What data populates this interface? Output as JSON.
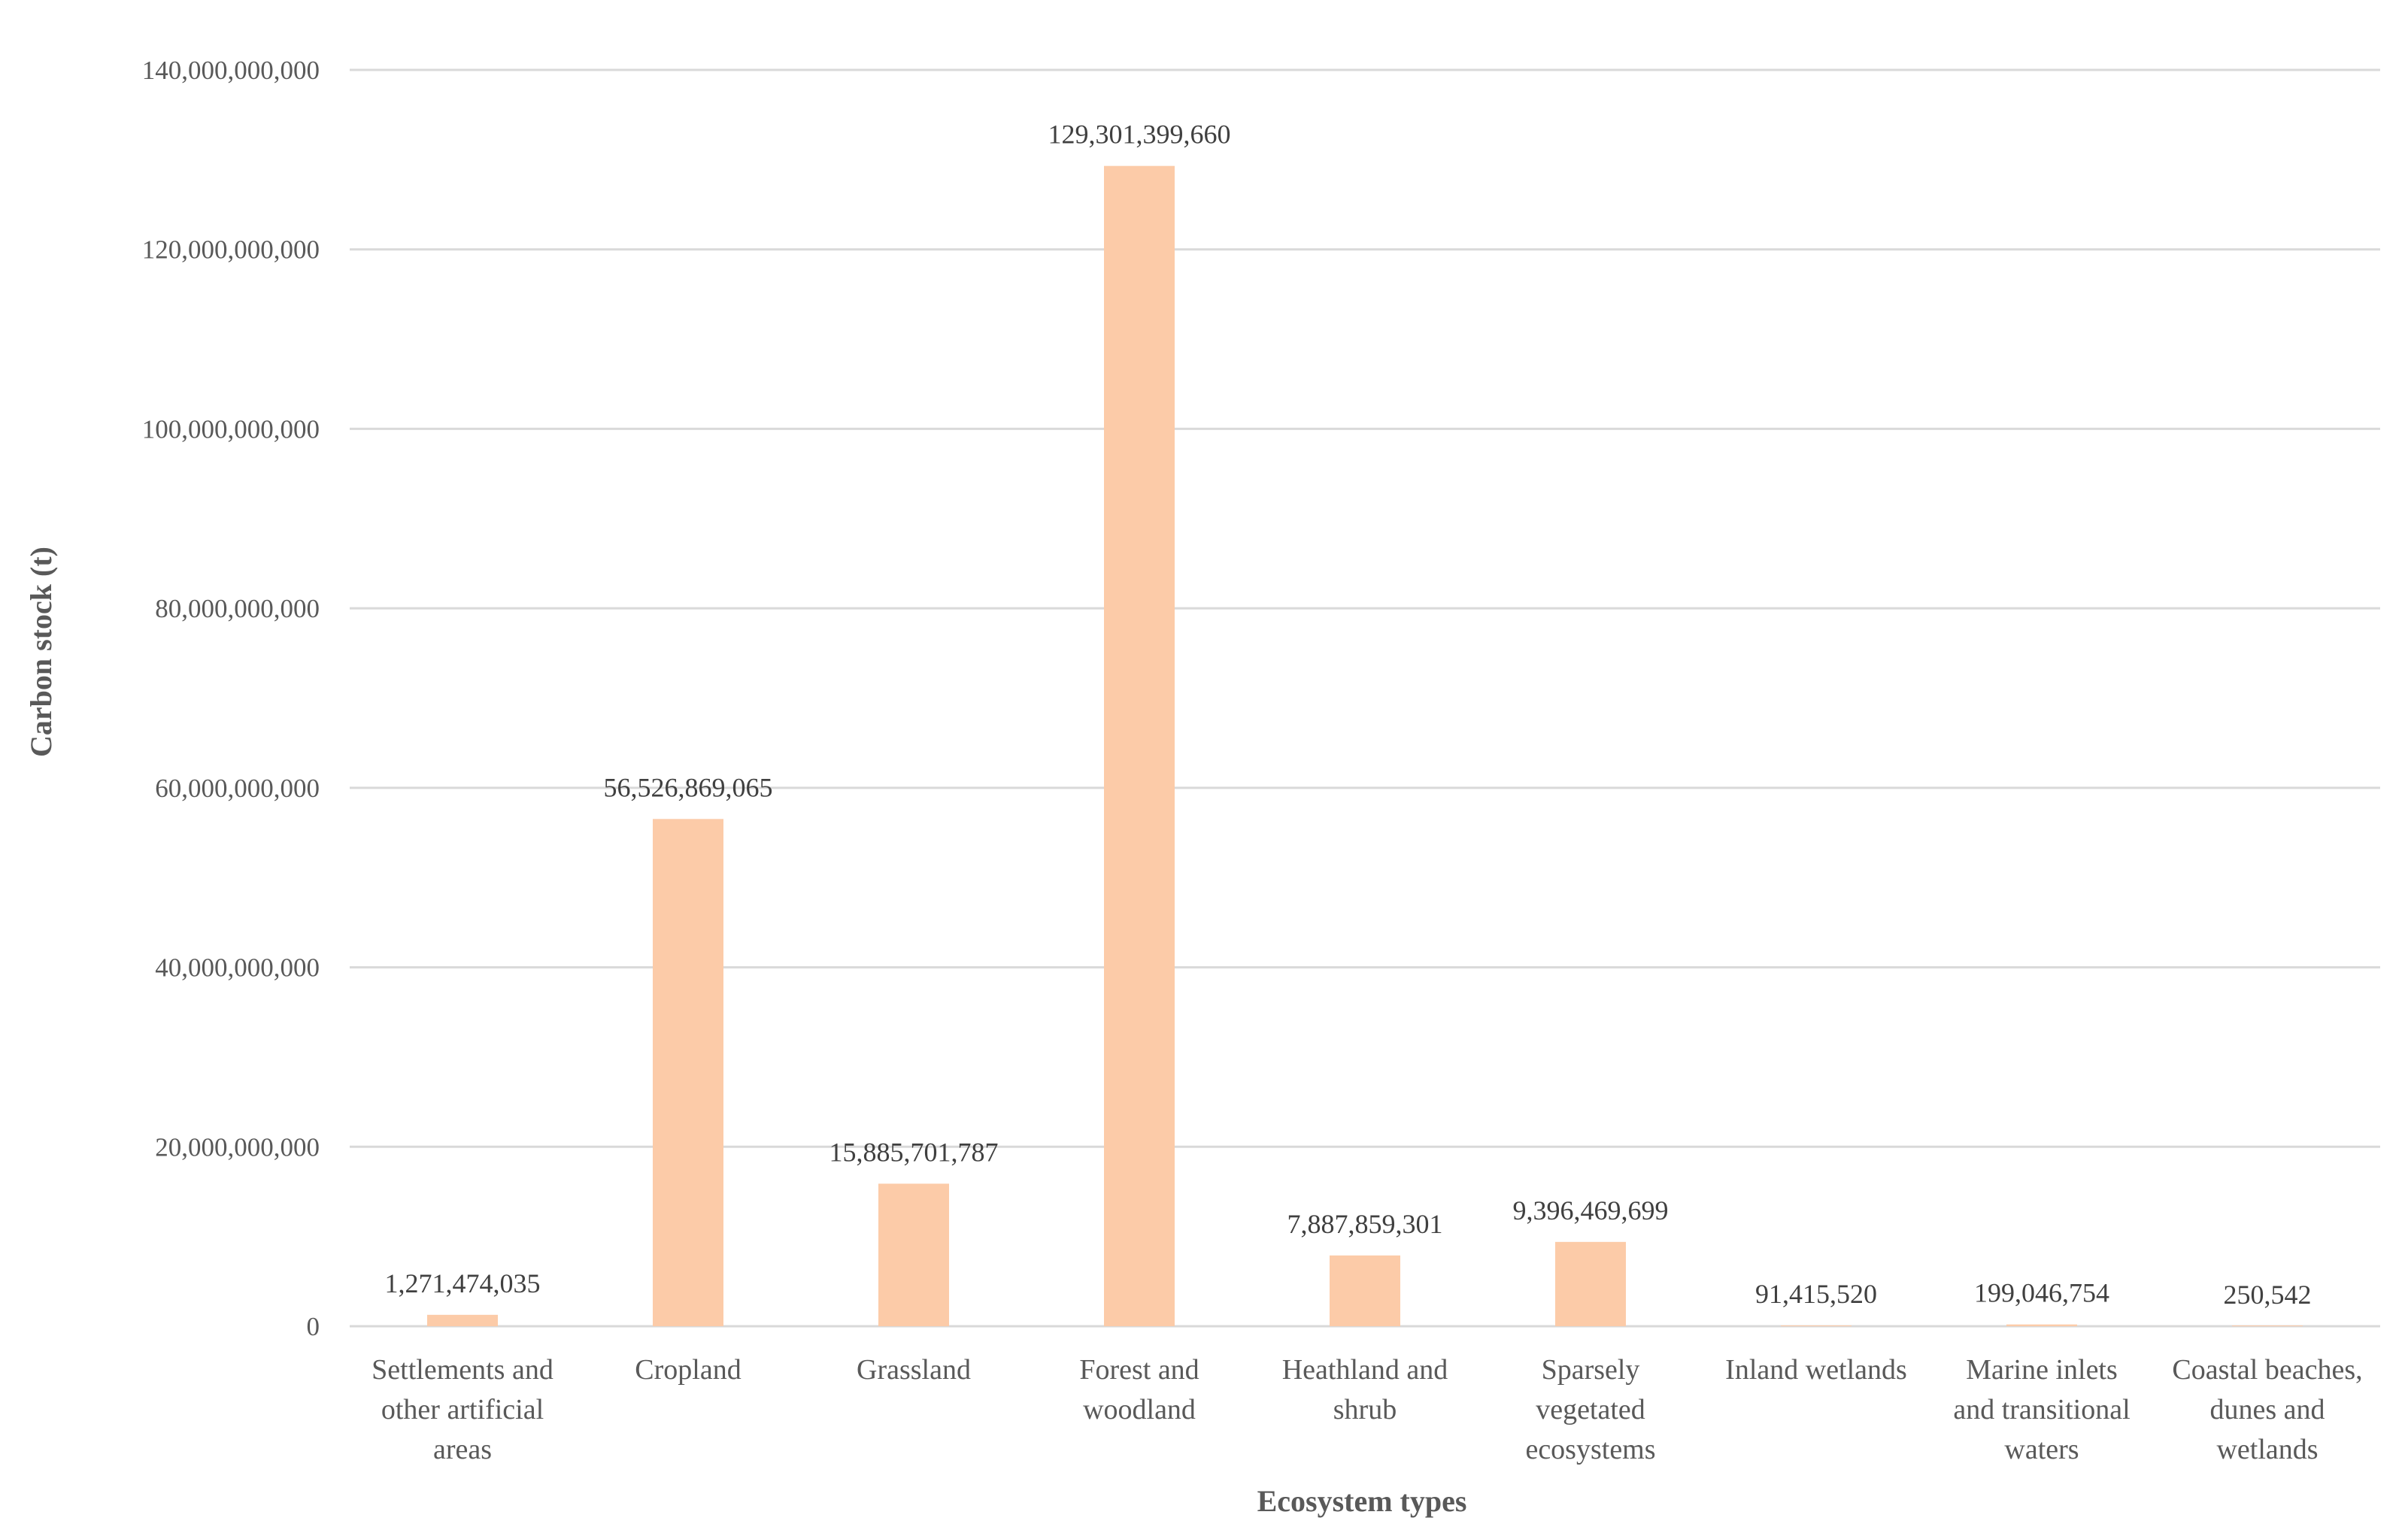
{
  "chart_data": {
    "type": "bar",
    "title": "",
    "xlabel": "Ecosystem types",
    "ylabel": "Carbon stock (t)",
    "ylim": [
      0,
      140000000000
    ],
    "yticks": [
      0,
      20000000000,
      40000000000,
      60000000000,
      80000000000,
      100000000000,
      120000000000,
      140000000000
    ],
    "ytick_labels": [
      "0",
      "20,000,000,000",
      "40,000,000,000",
      "60,000,000,000",
      "80,000,000,000",
      "100,000,000,000",
      "120,000,000,000",
      "140,000,000,000"
    ],
    "grid": true,
    "bar_color": "#fccba8",
    "categories": [
      [
        "Settlements and",
        "other artificial",
        "areas"
      ],
      [
        "Cropland"
      ],
      [
        "Grassland"
      ],
      [
        "Forest and",
        "woodland"
      ],
      [
        "Heathland and",
        "shrub"
      ],
      [
        "Sparsely",
        "vegetated",
        "ecosystems"
      ],
      [
        "Inland wetlands"
      ],
      [
        "Marine inlets",
        "and transitional",
        "waters"
      ],
      [
        "Coastal beaches,",
        "dunes and",
        "wetlands"
      ]
    ],
    "values": [
      1271474035,
      56526869065,
      15885701787,
      129301399660,
      7887859301,
      9396469699,
      91415520,
      199046754,
      250542
    ],
    "data_labels": [
      "1,271,474,035",
      "56,526,869,065",
      "15,885,701,787",
      "129,301,399,660",
      "7,887,859,301",
      "9,396,469,699",
      "91,415,520",
      "199,046,754",
      "250,542"
    ]
  }
}
